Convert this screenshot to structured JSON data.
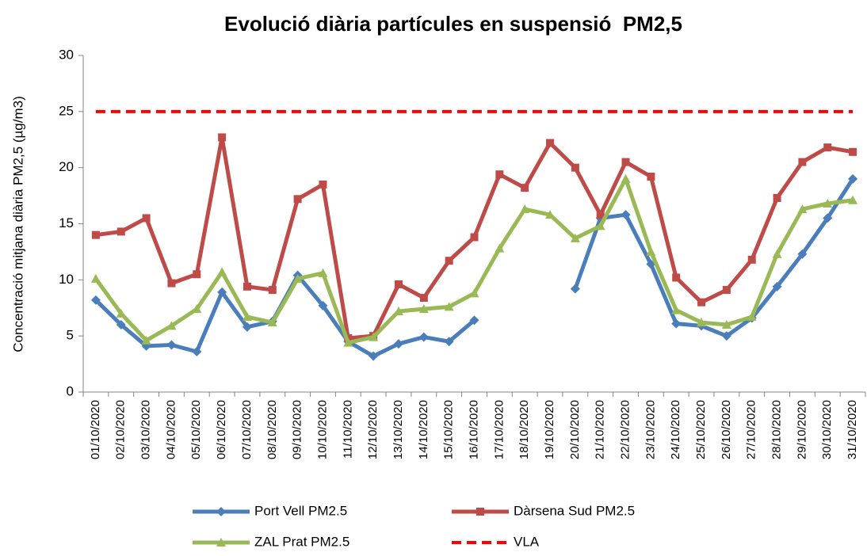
{
  "chart_data": {
    "type": "line",
    "title": "Evolució diària partícules en suspensió  PM2,5",
    "y_label": "Concentració mitjana diària PM2,5 (µg/m3)",
    "categories": [
      "01/10/2020",
      "02/10/2020",
      "03/10/2020",
      "04/10/2020",
      "05/10/2020",
      "06/10/2020",
      "07/10/2020",
      "08/10/2020",
      "09/10/2020",
      "10/10/2020",
      "11/10/2020",
      "12/10/2020",
      "13/10/2020",
      "14/10/2020",
      "15/10/2020",
      "16/10/2020",
      "17/10/2020",
      "18/10/2020",
      "19/10/2020",
      "20/10/2020",
      "21/10/2020",
      "22/10/2020",
      "23/10/2020",
      "24/10/2020",
      "25/10/2020",
      "26/10/2020",
      "27/10/2020",
      "28/10/2020",
      "29/10/2020",
      "30/10/2020",
      "31/10/2020"
    ],
    "series": [
      {
        "name": "Port Vell PM2.5",
        "color": "#4a7ebb",
        "marker": "diamond",
        "values": [
          8.2,
          6.0,
          4.1,
          4.2,
          3.6,
          8.9,
          5.8,
          6.3,
          10.4,
          7.7,
          4.5,
          3.2,
          4.3,
          4.9,
          4.5,
          6.4,
          null,
          null,
          null,
          9.2,
          15.5,
          15.8,
          11.4,
          6.1,
          5.9,
          5.0,
          6.6,
          9.4,
          12.3,
          15.5,
          19.0
        ]
      },
      {
        "name": "Dàrsena Sud PM2.5",
        "color": "#be4b48",
        "marker": "square",
        "values": [
          14.0,
          14.3,
          15.5,
          9.7,
          10.5,
          22.7,
          9.4,
          9.1,
          17.2,
          18.5,
          4.8,
          5.0,
          9.6,
          8.4,
          11.7,
          13.8,
          19.4,
          18.2,
          22.2,
          20.0,
          15.8,
          20.5,
          19.2,
          10.2,
          8.0,
          9.1,
          11.8,
          17.3,
          20.5,
          21.8,
          21.4
        ]
      },
      {
        "name": "ZAL Prat PM2.5",
        "color": "#98b954",
        "marker": "triangle",
        "values": [
          10.1,
          7.0,
          4.6,
          5.9,
          7.4,
          10.7,
          6.7,
          6.2,
          10.1,
          10.6,
          4.4,
          4.9,
          7.2,
          7.4,
          7.6,
          8.8,
          12.8,
          16.3,
          15.8,
          13.7,
          14.8,
          19.0,
          12.5,
          7.3,
          6.2,
          6.0,
          6.7,
          12.3,
          16.3,
          16.8,
          17.1
        ]
      },
      {
        "name": "VLA",
        "color": "#ff0000",
        "marker": "none",
        "dash": true,
        "values": [
          25,
          25,
          25,
          25,
          25,
          25,
          25,
          25,
          25,
          25,
          25,
          25,
          25,
          25,
          25,
          25,
          25,
          25,
          25,
          25,
          25,
          25,
          25,
          25,
          25,
          25,
          25,
          25,
          25,
          25,
          25
        ]
      }
    ],
    "ylim": [
      0,
      30
    ],
    "yticks": [
      0,
      5,
      10,
      15,
      20,
      25,
      30
    ],
    "grid": false,
    "legend": "bottom"
  }
}
